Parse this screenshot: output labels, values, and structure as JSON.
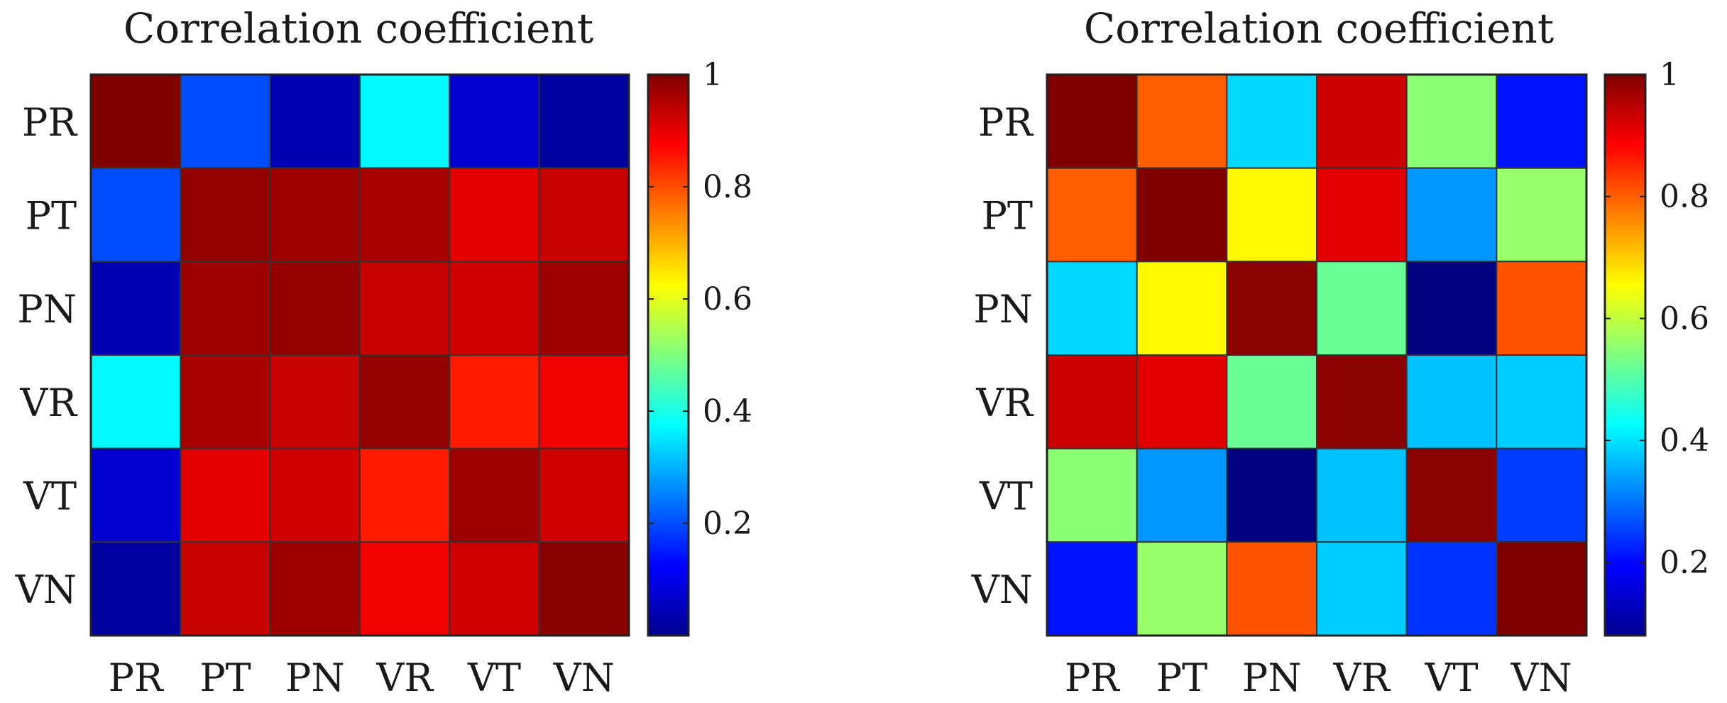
{
  "chart_data": [
    {
      "type": "heatmap",
      "title": "Correlation coefficient",
      "x_labels": [
        "PR",
        "PT",
        "PN",
        "VR",
        "VT",
        "VN"
      ],
      "y_labels": [
        "PR",
        "PT",
        "PN",
        "VR",
        "VT",
        "VN"
      ],
      "values": [
        [
          1.0,
          0.2,
          0.05,
          0.37,
          0.08,
          0.03
        ],
        [
          0.2,
          0.98,
          0.97,
          0.96,
          0.9,
          0.93
        ],
        [
          0.05,
          0.97,
          0.98,
          0.93,
          0.92,
          0.97
        ],
        [
          0.37,
          0.96,
          0.93,
          0.98,
          0.85,
          0.89
        ],
        [
          0.08,
          0.9,
          0.92,
          0.85,
          0.97,
          0.92
        ],
        [
          0.03,
          0.93,
          0.97,
          0.89,
          0.92,
          0.99
        ]
      ],
      "colormap": "jet",
      "clim": [
        0.0,
        1.0
      ],
      "colorbar": {
        "ticks": [
          0.2,
          0.4,
          0.6,
          0.8,
          1
        ],
        "tick_labels": [
          "0.2",
          "0.4",
          "0.6",
          "0.8",
          "1"
        ]
      }
    },
    {
      "type": "heatmap",
      "title": "Correlation coefficient",
      "x_labels": [
        "PR",
        "PT",
        "PN",
        "VR",
        "VT",
        "VN"
      ],
      "y_labels": [
        "PR",
        "PT",
        "PN",
        "VR",
        "VT",
        "VN"
      ],
      "values": [
        [
          1.0,
          0.8,
          0.39,
          0.93,
          0.55,
          0.21
        ],
        [
          0.8,
          1.0,
          0.66,
          0.91,
          0.33,
          0.56
        ],
        [
          0.39,
          0.66,
          0.99,
          0.52,
          0.08,
          0.81
        ],
        [
          0.93,
          0.91,
          0.52,
          0.99,
          0.37,
          0.38
        ],
        [
          0.55,
          0.33,
          0.08,
          0.37,
          0.99,
          0.25
        ],
        [
          0.21,
          0.56,
          0.81,
          0.38,
          0.24,
          1.0
        ]
      ],
      "colormap": "jet",
      "clim": [
        0.08,
        1.0
      ],
      "colorbar": {
        "ticks": [
          0.2,
          0.4,
          0.6,
          0.8,
          1
        ],
        "tick_labels": [
          "0.2",
          "0.4",
          "0.6",
          "0.8",
          "1"
        ]
      }
    }
  ]
}
